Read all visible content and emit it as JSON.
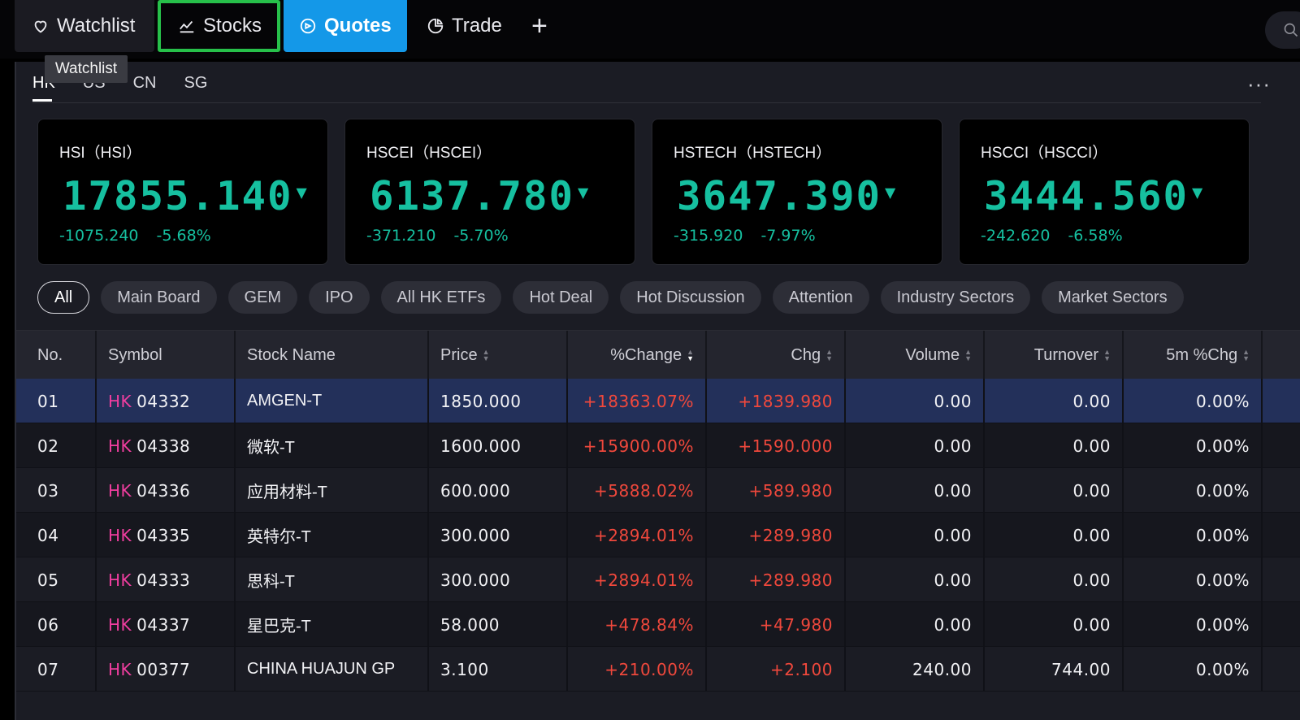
{
  "nav": {
    "tabs": [
      {
        "label": "Watchlist",
        "icon": "heart-icon"
      },
      {
        "label": "Stocks",
        "icon": "chart-line-icon"
      },
      {
        "label": "Quotes",
        "icon": "quotes-icon"
      },
      {
        "label": "Trade",
        "icon": "pie-icon"
      }
    ],
    "add_label": "+",
    "tooltip": "Watchlist"
  },
  "market_tabs": [
    "HK",
    "US",
    "CN",
    "SG"
  ],
  "more_label": "···",
  "indices": [
    {
      "name": "HSI（HSI）",
      "value": "17855.140",
      "arrow": "▼",
      "change": "-1075.240",
      "pct": "-5.68%"
    },
    {
      "name": "HSCEI（HSCEI）",
      "value": "6137.780",
      "arrow": "▼",
      "change": "-371.210",
      "pct": "-5.70%"
    },
    {
      "name": "HSTECH（HSTECH）",
      "value": "3647.390",
      "arrow": "▼",
      "change": "-315.920",
      "pct": "-7.97%"
    },
    {
      "name": "HSCCI（HSCCI）",
      "value": "3444.560",
      "arrow": "▼",
      "change": "-242.620",
      "pct": "-6.58%"
    }
  ],
  "filters": [
    "All",
    "Main Board",
    "GEM",
    "IPO",
    "All HK ETFs",
    "Hot Deal",
    "Hot Discussion",
    "Attention",
    "Industry Sectors",
    "Market Sectors"
  ],
  "table": {
    "columns": [
      "No.",
      "Symbol",
      "Stock Name",
      "Price",
      "%Change",
      "Chg",
      "Volume",
      "Turnover",
      "5m %Chg"
    ],
    "rows": [
      {
        "no": "01",
        "mkt": "HK",
        "code": "04332",
        "name": "AMGEN-T",
        "price": "1850.000",
        "pct": "+18363.07%",
        "chg": "+1839.980",
        "vol": "0.00",
        "turn": "0.00",
        "m5": "0.00%"
      },
      {
        "no": "02",
        "mkt": "HK",
        "code": "04338",
        "name": "微软-T",
        "price": "1600.000",
        "pct": "+15900.00%",
        "chg": "+1590.000",
        "vol": "0.00",
        "turn": "0.00",
        "m5": "0.00%"
      },
      {
        "no": "03",
        "mkt": "HK",
        "code": "04336",
        "name": "应用材料-T",
        "price": "600.000",
        "pct": "+5888.02%",
        "chg": "+589.980",
        "vol": "0.00",
        "turn": "0.00",
        "m5": "0.00%"
      },
      {
        "no": "04",
        "mkt": "HK",
        "code": "04335",
        "name": "英特尔-T",
        "price": "300.000",
        "pct": "+2894.01%",
        "chg": "+289.980",
        "vol": "0.00",
        "turn": "0.00",
        "m5": "0.00%"
      },
      {
        "no": "05",
        "mkt": "HK",
        "code": "04333",
        "name": "思科-T",
        "price": "300.000",
        "pct": "+2894.01%",
        "chg": "+289.980",
        "vol": "0.00",
        "turn": "0.00",
        "m5": "0.00%"
      },
      {
        "no": "06",
        "mkt": "HK",
        "code": "04337",
        "name": "星巴克-T",
        "price": "58.000",
        "pct": "+478.84%",
        "chg": "+47.980",
        "vol": "0.00",
        "turn": "0.00",
        "m5": "0.00%"
      },
      {
        "no": "07",
        "mkt": "HK",
        "code": "00377",
        "name": "CHINA HUAJUN GP",
        "price": "3.100",
        "pct": "+210.00%",
        "chg": "+2.100",
        "vol": "240.00",
        "turn": "744.00",
        "m5": "0.00%"
      }
    ]
  },
  "colors": {
    "accent": "#1498e8",
    "down": "#16c0a0",
    "up": "#f0483c",
    "market_tag": "#f13ea0",
    "highlight_box": "#27c04a"
  }
}
